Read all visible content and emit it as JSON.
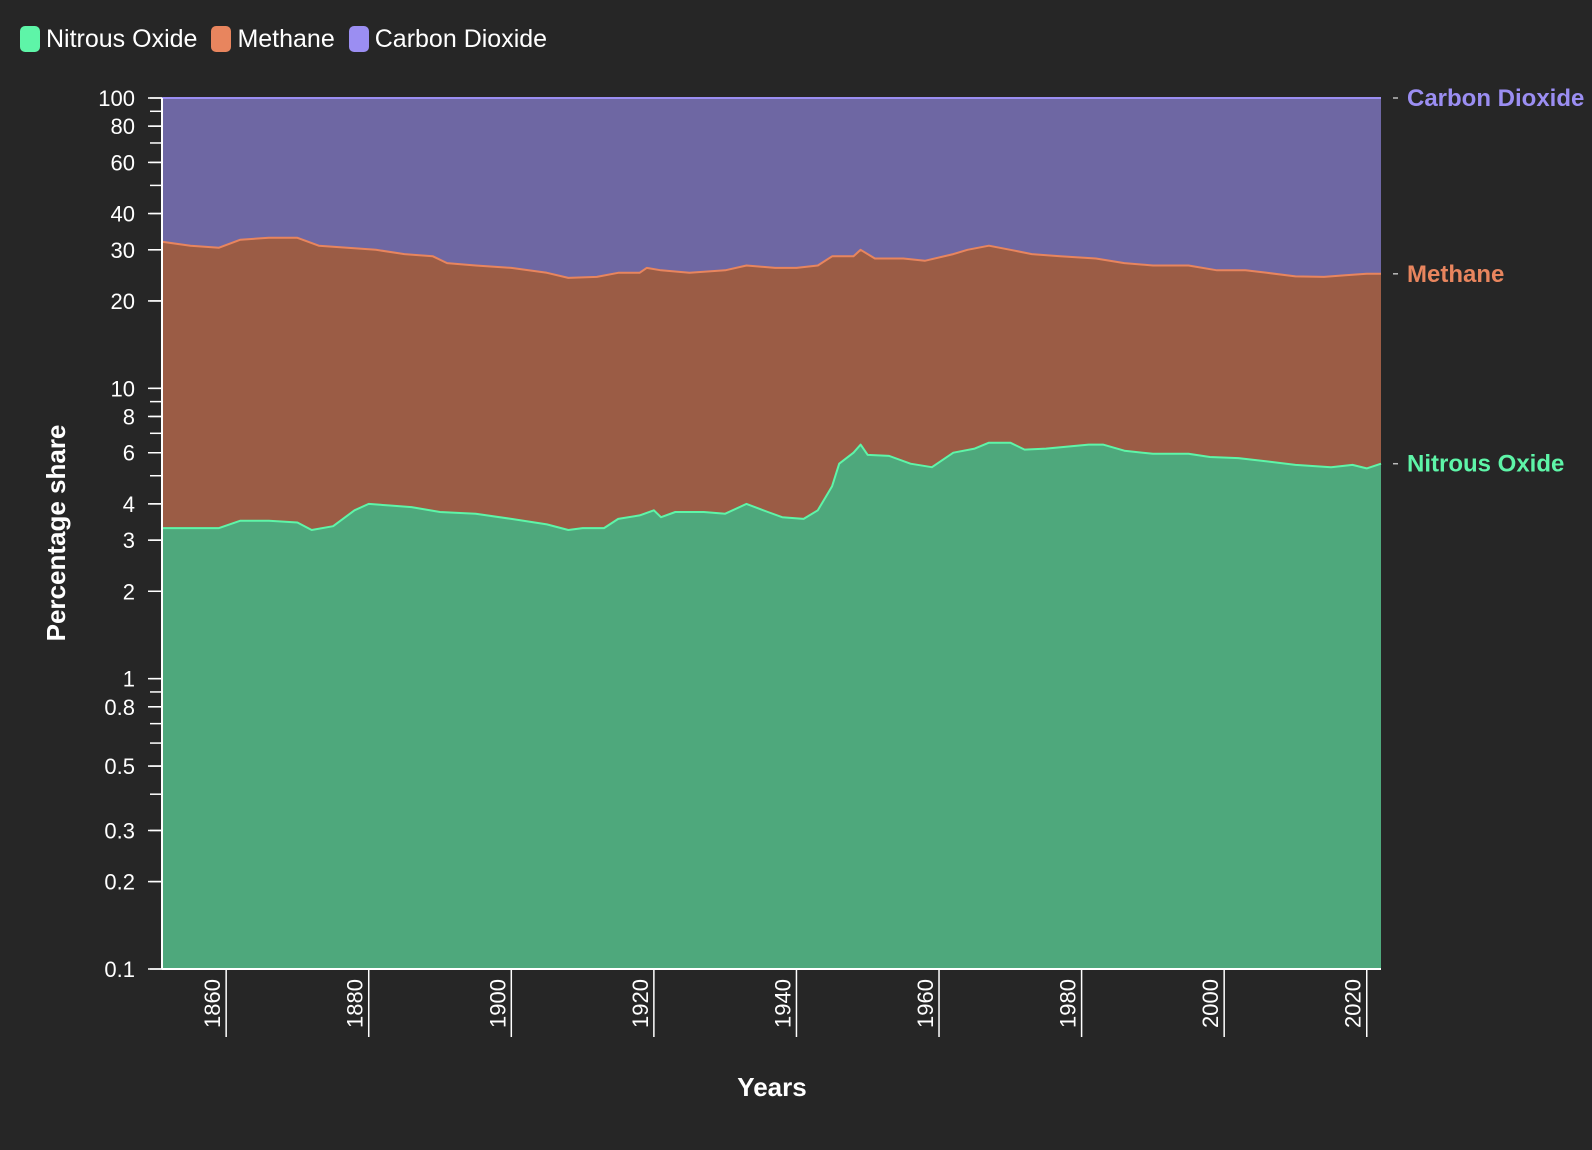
{
  "legend": [
    {
      "name": "Nitrous Oxide",
      "color": "#5ef5a8"
    },
    {
      "name": "Methane",
      "color": "#e8855e"
    },
    {
      "name": "Carbon Dioxide",
      "color": "#9b8ef2"
    }
  ],
  "chart_data": {
    "type": "area",
    "stacked": true,
    "yscale": "log",
    "xlabel": "Years",
    "ylabel": "Percentage share",
    "xlim": [
      1851,
      2022
    ],
    "ylim": [
      0.1,
      100
    ],
    "x_ticks": [
      "1860",
      "1880",
      "1900",
      "1920",
      "1940",
      "1960",
      "1980",
      "2000",
      "2020"
    ],
    "y_ticks": [
      "0.1",
      "0.2",
      "0.3",
      "0.5",
      "0.8",
      "1",
      "2",
      "3",
      "4",
      "6",
      "8",
      "10",
      "20",
      "30",
      "40",
      "60",
      "80",
      "100"
    ],
    "series": [
      {
        "name": "Nitrous Oxide",
        "color": "#5ef5a8",
        "fill": "#4ea87c",
        "points": [
          [
            1851,
            3.3
          ],
          [
            1855,
            3.3
          ],
          [
            1859,
            3.3
          ],
          [
            1862,
            3.5
          ],
          [
            1866,
            3.5
          ],
          [
            1870,
            3.45
          ],
          [
            1872,
            3.25
          ],
          [
            1875,
            3.35
          ],
          [
            1878,
            3.8
          ],
          [
            1880,
            4.0
          ],
          [
            1883,
            3.95
          ],
          [
            1886,
            3.9
          ],
          [
            1890,
            3.75
          ],
          [
            1895,
            3.7
          ],
          [
            1900,
            3.55
          ],
          [
            1905,
            3.4
          ],
          [
            1908,
            3.25
          ],
          [
            1910,
            3.3
          ],
          [
            1913,
            3.3
          ],
          [
            1915,
            3.55
          ],
          [
            1918,
            3.65
          ],
          [
            1920,
            3.8
          ],
          [
            1921,
            3.6
          ],
          [
            1923,
            3.75
          ],
          [
            1927,
            3.75
          ],
          [
            1930,
            3.7
          ],
          [
            1933,
            4.0
          ],
          [
            1936,
            3.75
          ],
          [
            1938,
            3.6
          ],
          [
            1941,
            3.55
          ],
          [
            1943,
            3.8
          ],
          [
            1945,
            4.6
          ],
          [
            1946,
            5.5
          ],
          [
            1948,
            6.0
          ],
          [
            1949,
            6.4
          ],
          [
            1950,
            5.9
          ],
          [
            1953,
            5.85
          ],
          [
            1956,
            5.5
          ],
          [
            1959,
            5.35
          ],
          [
            1962,
            6.0
          ],
          [
            1965,
            6.2
          ],
          [
            1967,
            6.5
          ],
          [
            1970,
            6.5
          ],
          [
            1972,
            6.15
          ],
          [
            1975,
            6.2
          ],
          [
            1978,
            6.3
          ],
          [
            1981,
            6.4
          ],
          [
            1983,
            6.4
          ],
          [
            1986,
            6.1
          ],
          [
            1990,
            5.95
          ],
          [
            1995,
            5.95
          ],
          [
            1998,
            5.8
          ],
          [
            2002,
            5.75
          ],
          [
            2006,
            5.6
          ],
          [
            2010,
            5.45
          ],
          [
            2015,
            5.35
          ],
          [
            2018,
            5.45
          ],
          [
            2020,
            5.3
          ],
          [
            2022,
            5.5
          ]
        ]
      },
      {
        "name": "Methane",
        "color": "#e8855e",
        "fill": "#9b5c45",
        "points": [
          [
            1851,
            32
          ],
          [
            1855,
            31
          ],
          [
            1859,
            30.5
          ],
          [
            1862,
            32.5
          ],
          [
            1866,
            33
          ],
          [
            1870,
            33
          ],
          [
            1873,
            31
          ],
          [
            1877,
            30.5
          ],
          [
            1881,
            30
          ],
          [
            1885,
            29
          ],
          [
            1889,
            28.5
          ],
          [
            1891,
            27
          ],
          [
            1895,
            26.5
          ],
          [
            1900,
            26
          ],
          [
            1905,
            25
          ],
          [
            1908,
            24
          ],
          [
            1912,
            24.2
          ],
          [
            1915,
            25
          ],
          [
            1918,
            25
          ],
          [
            1919,
            26
          ],
          [
            1921,
            25.5
          ],
          [
            1925,
            25
          ],
          [
            1930,
            25.5
          ],
          [
            1933,
            26.5
          ],
          [
            1937,
            26
          ],
          [
            1940,
            26
          ],
          [
            1943,
            26.5
          ],
          [
            1945,
            28.5
          ],
          [
            1948,
            28.5
          ],
          [
            1949,
            30
          ],
          [
            1951,
            28
          ],
          [
            1955,
            28
          ],
          [
            1958,
            27.5
          ],
          [
            1962,
            29
          ],
          [
            1964,
            30
          ],
          [
            1967,
            31
          ],
          [
            1970,
            30
          ],
          [
            1973,
            29
          ],
          [
            1977,
            28.5
          ],
          [
            1982,
            28
          ],
          [
            1986,
            27
          ],
          [
            1990,
            26.5
          ],
          [
            1995,
            26.5
          ],
          [
            1999,
            25.5
          ],
          [
            2003,
            25.5
          ],
          [
            2006,
            25
          ],
          [
            2010,
            24.3
          ],
          [
            2014,
            24.2
          ],
          [
            2017,
            24.5
          ],
          [
            2020,
            24.8
          ],
          [
            2022,
            24.8
          ]
        ]
      },
      {
        "name": "Carbon Dioxide",
        "color": "#9b8ef2",
        "fill": "#6e67a3",
        "points": [
          [
            1851,
            100
          ],
          [
            2022,
            100
          ]
        ]
      }
    ]
  }
}
